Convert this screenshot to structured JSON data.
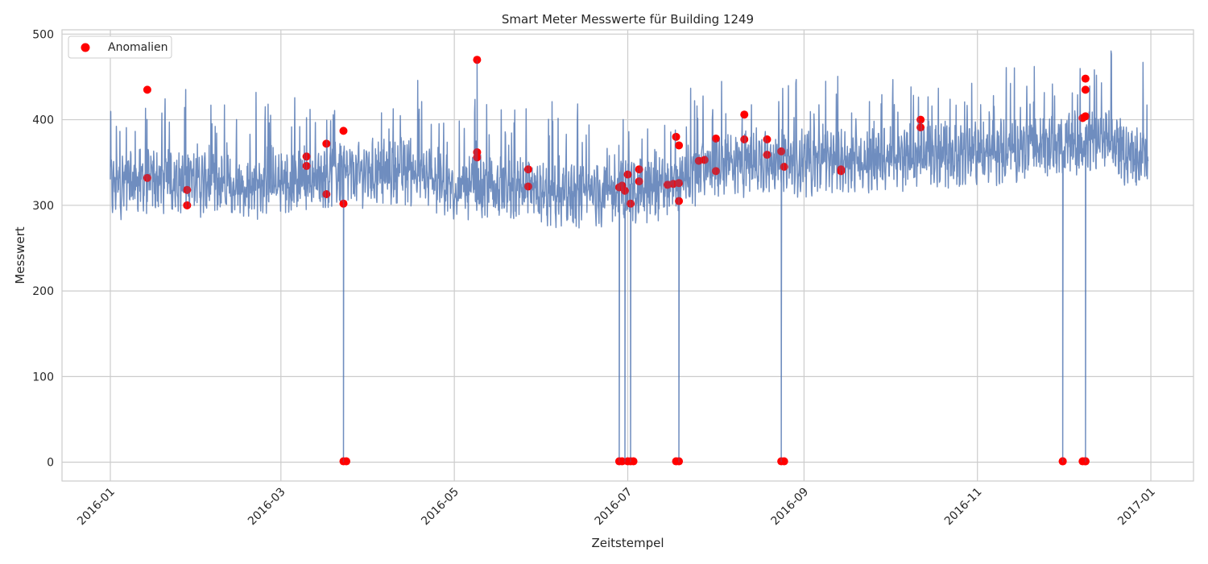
{
  "chart_data": {
    "type": "line",
    "title": "Smart Meter Messwerte für Building 1249",
    "xlabel": "Zeitstempel",
    "ylabel": "Messwert",
    "x_range": [
      "2015-12-15",
      "2017-01-16"
    ],
    "ylim": [
      -22,
      505
    ],
    "x_ticks": [
      "2016-01",
      "2016-03",
      "2016-05",
      "2016-07",
      "2016-09",
      "2016-11",
      "2017-01"
    ],
    "y_ticks": [
      0,
      100,
      200,
      300,
      400,
      500
    ],
    "grid": true,
    "legend": {
      "placement": "top-left",
      "entries": [
        "Anomalien"
      ]
    },
    "colors": {
      "line": "#4c72b0",
      "anomaly": "#ff0000",
      "grid": "#cccccc",
      "frame": "#cccccc"
    },
    "series": [
      {
        "type": "line",
        "x": [
          "2016-01-01",
          "2016-01-15",
          "2016-02-01",
          "2016-02-15",
          "2016-03-01",
          "2016-03-15",
          "2016-04-01",
          "2016-04-15",
          "2016-05-01",
          "2016-05-15",
          "2016-06-01",
          "2016-06-15",
          "2016-07-01",
          "2016-07-15",
          "2016-08-01",
          "2016-08-15",
          "2016-09-01",
          "2016-09-15",
          "2016-10-01",
          "2016-10-15",
          "2016-11-01",
          "2016-11-15",
          "2016-12-01",
          "2016-12-15",
          "2016-12-31"
        ],
        "values": [
          322,
          330,
          326,
          322,
          326,
          333,
          338,
          340,
          320,
          318,
          312,
          310,
          316,
          322,
          344,
          352,
          350,
          352,
          355,
          357,
          360,
          366,
          370,
          376,
          350
        ],
        "spread": 55,
        "drops": [
          {
            "x": "2016-03-23",
            "y": 0
          },
          {
            "x": "2016-05-09",
            "y": 470
          },
          {
            "x": "2016-06-28",
            "y": 0
          },
          {
            "x": "2016-06-30",
            "y": 0
          },
          {
            "x": "2016-07-02",
            "y": 0
          },
          {
            "x": "2016-07-19",
            "y": 0
          },
          {
            "x": "2016-08-24",
            "y": 0
          },
          {
            "x": "2016-12-01",
            "y": 0
          },
          {
            "x": "2016-12-09",
            "y": 0
          }
        ]
      },
      {
        "name": "Anomalien",
        "type": "scatter",
        "points": [
          {
            "x": "2016-01-14",
            "y": 435
          },
          {
            "x": "2016-01-14",
            "y": 332
          },
          {
            "x": "2016-01-28",
            "y": 318
          },
          {
            "x": "2016-01-28",
            "y": 300
          },
          {
            "x": "2016-03-10",
            "y": 357
          },
          {
            "x": "2016-03-10",
            "y": 346
          },
          {
            "x": "2016-03-17",
            "y": 372
          },
          {
            "x": "2016-03-17",
            "y": 313
          },
          {
            "x": "2016-03-23",
            "y": 387
          },
          {
            "x": "2016-03-23",
            "y": 302
          },
          {
            "x": "2016-03-23",
            "y": 1
          },
          {
            "x": "2016-03-24",
            "y": 1
          },
          {
            "x": "2016-05-09",
            "y": 470
          },
          {
            "x": "2016-05-09",
            "y": 362
          },
          {
            "x": "2016-05-09",
            "y": 356
          },
          {
            "x": "2016-05-27",
            "y": 342
          },
          {
            "x": "2016-05-27",
            "y": 322
          },
          {
            "x": "2016-06-28",
            "y": 321
          },
          {
            "x": "2016-06-29",
            "y": 323
          },
          {
            "x": "2016-06-30",
            "y": 317
          },
          {
            "x": "2016-07-01",
            "y": 336
          },
          {
            "x": "2016-07-02",
            "y": 302
          },
          {
            "x": "2016-07-05",
            "y": 342
          },
          {
            "x": "2016-07-05",
            "y": 328
          },
          {
            "x": "2016-06-28",
            "y": 1
          },
          {
            "x": "2016-06-29",
            "y": 1
          },
          {
            "x": "2016-07-01",
            "y": 1
          },
          {
            "x": "2016-07-02",
            "y": 1
          },
          {
            "x": "2016-07-03",
            "y": 1
          },
          {
            "x": "2016-07-15",
            "y": 324
          },
          {
            "x": "2016-07-17",
            "y": 325
          },
          {
            "x": "2016-07-18",
            "y": 380
          },
          {
            "x": "2016-07-19",
            "y": 370
          },
          {
            "x": "2016-07-19",
            "y": 326
          },
          {
            "x": "2016-07-19",
            "y": 305
          },
          {
            "x": "2016-07-18",
            "y": 1
          },
          {
            "x": "2016-07-19",
            "y": 1
          },
          {
            "x": "2016-07-26",
            "y": 352
          },
          {
            "x": "2016-07-28",
            "y": 353
          },
          {
            "x": "2016-08-01",
            "y": 378
          },
          {
            "x": "2016-08-01",
            "y": 340
          },
          {
            "x": "2016-08-11",
            "y": 406
          },
          {
            "x": "2016-08-11",
            "y": 377
          },
          {
            "x": "2016-08-19",
            "y": 377
          },
          {
            "x": "2016-08-19",
            "y": 359
          },
          {
            "x": "2016-08-24",
            "y": 363
          },
          {
            "x": "2016-08-25",
            "y": 345
          },
          {
            "x": "2016-08-24",
            "y": 1
          },
          {
            "x": "2016-08-25",
            "y": 1
          },
          {
            "x": "2016-09-14",
            "y": 342
          },
          {
            "x": "2016-09-14",
            "y": 340
          },
          {
            "x": "2016-10-12",
            "y": 400
          },
          {
            "x": "2016-10-12",
            "y": 391
          },
          {
            "x": "2016-12-01",
            "y": 1
          },
          {
            "x": "2016-12-01",
            "y": 1
          },
          {
            "x": "2016-12-08",
            "y": 402
          },
          {
            "x": "2016-12-09",
            "y": 404
          },
          {
            "x": "2016-12-09",
            "y": 448
          },
          {
            "x": "2016-12-09",
            "y": 435
          },
          {
            "x": "2016-12-08",
            "y": 1
          },
          {
            "x": "2016-12-09",
            "y": 1
          },
          {
            "x": "2016-12-09",
            "y": 1
          }
        ]
      }
    ]
  }
}
